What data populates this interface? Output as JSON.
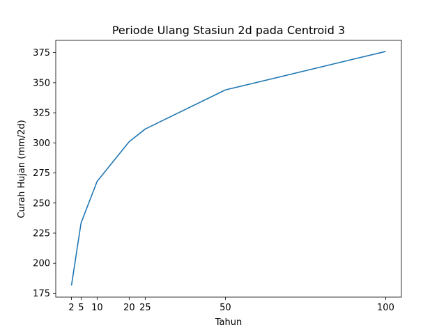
{
  "chart_data": {
    "type": "line",
    "title": "Periode Ulang Stasiun 2d pada Centroid 3",
    "xlabel": "Tahun",
    "ylabel": "Curah Hujan (mm/2d)",
    "x": [
      2,
      5,
      10,
      20,
      25,
      50,
      100
    ],
    "y": [
      181.5,
      233.5,
      268,
      301,
      311.5,
      344,
      376
    ],
    "xticks": [
      2,
      5,
      10,
      20,
      25,
      50,
      100
    ],
    "yticks": [
      175,
      200,
      225,
      250,
      275,
      300,
      325,
      350,
      375
    ],
    "xlim": [
      -2.9,
      104.9
    ],
    "ylim": [
      171.8,
      385.2
    ],
    "line_color": "#1f77b4",
    "grid": false,
    "legend": "none"
  }
}
